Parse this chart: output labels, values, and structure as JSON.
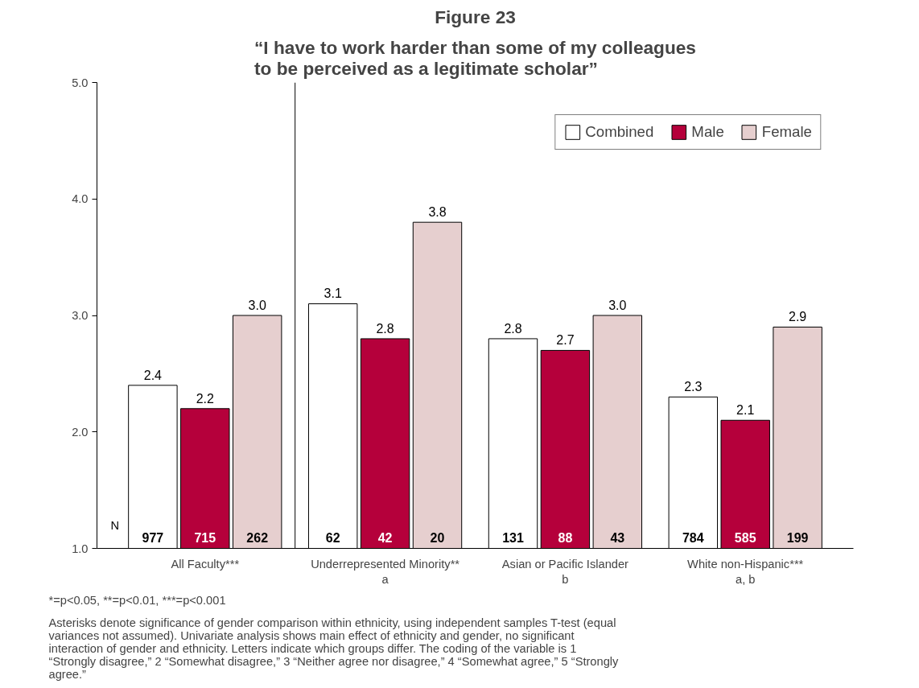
{
  "chart_data": {
    "type": "bar",
    "title": "Figure 23",
    "subtitle": "“I have to work harder than some of my colleagues\nto be perceived as a legitimate scholar”",
    "categories": [
      "All Faculty***",
      "Underrepresented Minority**\na",
      "Asian or Pacific Islander\nb",
      "White non-Hispanic***\na, b"
    ],
    "series": [
      {
        "name": "Combined",
        "color": "#ffffff",
        "values": [
          2.4,
          3.1,
          2.8,
          2.3
        ],
        "value_labels": [
          "2.4",
          "3.1",
          "2.8",
          "2.3"
        ]
      },
      {
        "name": "Male",
        "color": "#b5003b",
        "values": [
          2.2,
          2.8,
          2.7,
          2.1
        ],
        "value_labels": [
          "2.2",
          "2.8",
          "2.7",
          "2.1"
        ]
      },
      {
        "name": "Female",
        "color": "#e6cfcf",
        "values": [
          3.0,
          3.8,
          3.0,
          2.9
        ],
        "value_labels": [
          "3.0",
          "3.8",
          "3.0",
          "2.9"
        ]
      }
    ],
    "ylim": [
      1,
      5
    ],
    "yticks": [
      {
        "value": 1,
        "label": "1.0"
      },
      {
        "value": 2,
        "label": "2.0"
      },
      {
        "value": 3,
        "label": "3.0"
      },
      {
        "value": 4,
        "label": "4.0"
      },
      {
        "value": 5,
        "label": "5.0"
      }
    ],
    "grid": false,
    "legend": "top right",
    "annotations": [
      "N",
      "977",
      "715",
      "262",
      "62",
      "42",
      "20",
      "131",
      "88",
      "43",
      "784",
      "585",
      "199",
      "*=p<0.05, **=p<0.01, ***=p<0.001",
      "Asterisks denote significance of gender comparison within ethnicity, using independent samples T-test (equal variances not assumed). Univariate analysis shows main effect of ethnicity and gender, no significant interaction of gender and ethnicity. Letters indicate which groups differ. The coding of the variable is 1 “Strongly disagree,” 2 “Somewhat disagree,” 3 “Neither agree nor disagree,” 4 “Somewhat agree,” 5 “Strongly agree.”"
    ]
  }
}
